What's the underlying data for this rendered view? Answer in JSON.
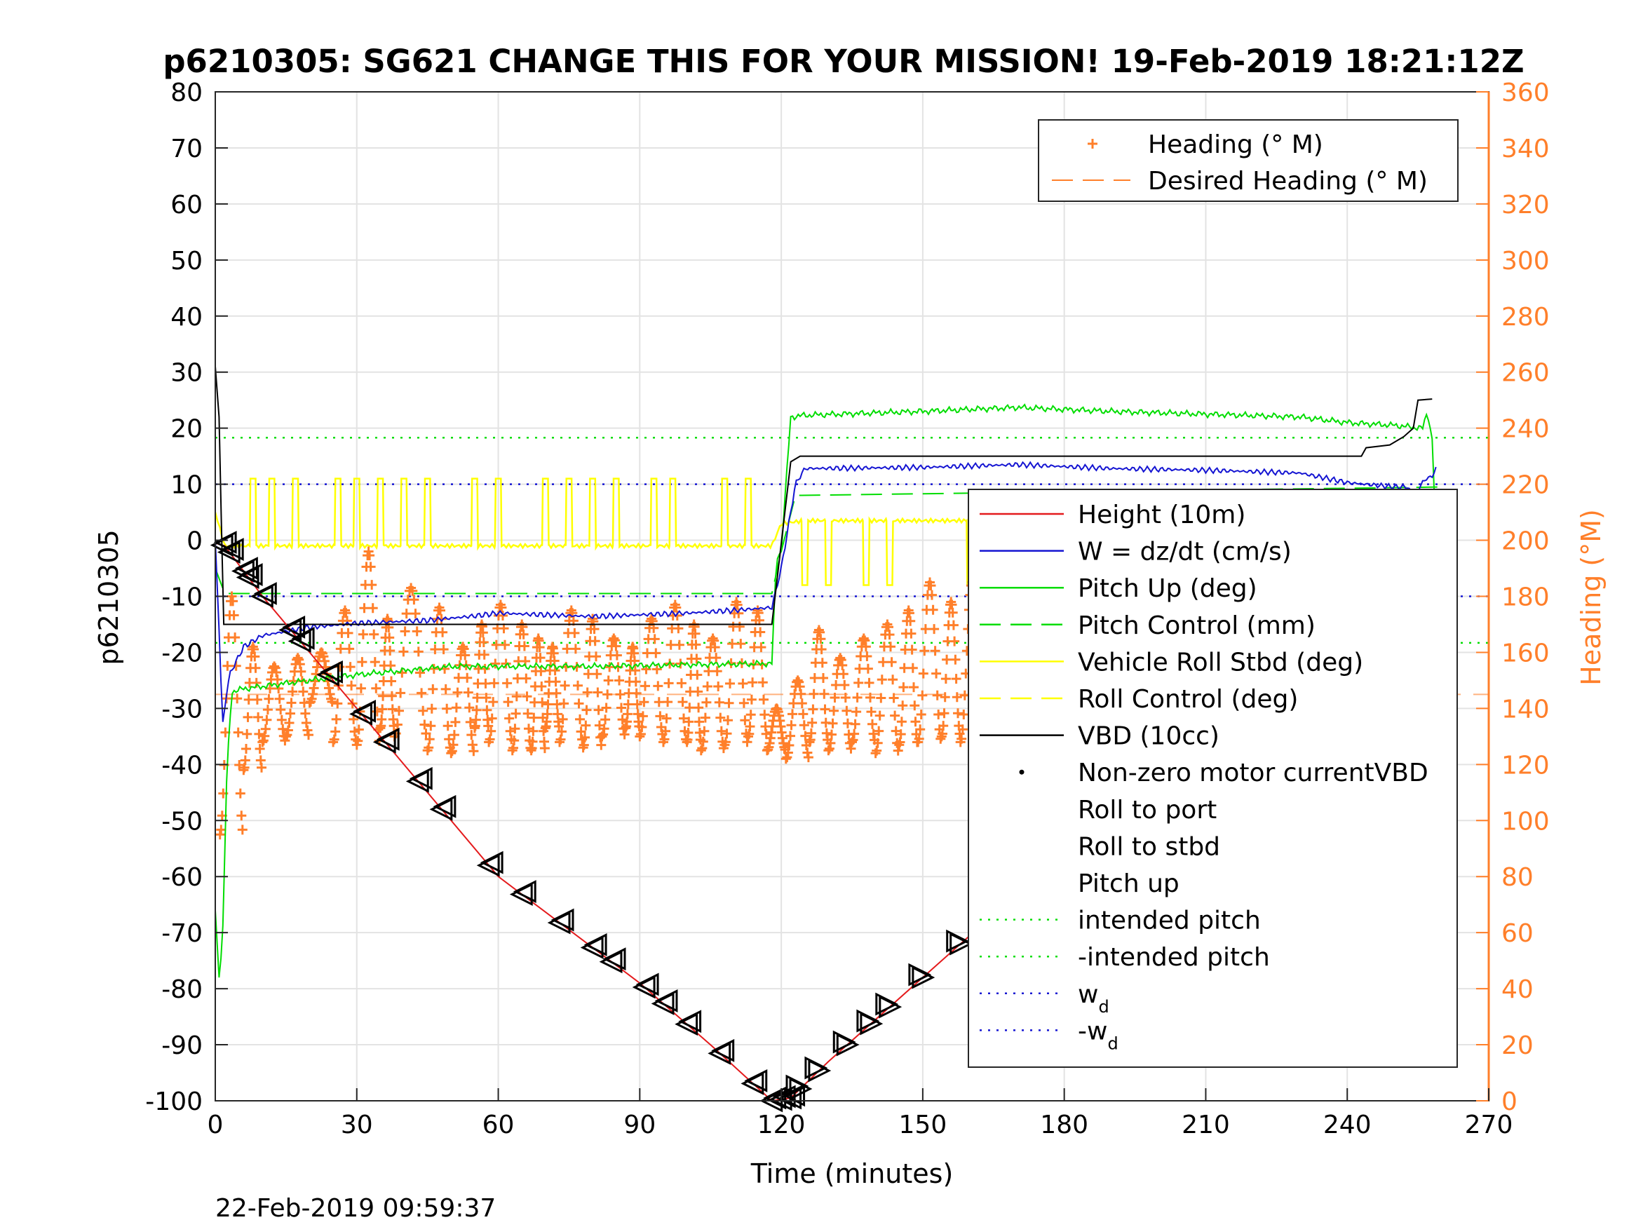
{
  "chart_data": {
    "type": "line",
    "title": "p6210305: SG621 CHANGE THIS FOR YOUR MISSION! 19-Feb-2019 18:21:12Z",
    "xlabel": "Time (minutes)",
    "ylabel": "p6210305",
    "y2label": "Heading (°M)",
    "footer": "22-Feb-2019 09:59:37",
    "xlim": [
      0,
      270
    ],
    "ylim": [
      -100,
      80
    ],
    "y2lim": [
      0,
      360
    ],
    "xticks": [
      0,
      30,
      60,
      90,
      120,
      150,
      180,
      210,
      240,
      270
    ],
    "yticks": [
      -100,
      -90,
      -80,
      -70,
      -60,
      -50,
      -40,
      -30,
      -20,
      -10,
      0,
      10,
      20,
      30,
      40,
      50,
      60,
      70,
      80
    ],
    "y2ticks": [
      0,
      20,
      40,
      60,
      80,
      100,
      120,
      140,
      160,
      180,
      200,
      220,
      240,
      260,
      280,
      300,
      320,
      340,
      360
    ],
    "grid": true,
    "colors": {
      "height": "#e41a1c",
      "w": "#1414d2",
      "pitch": "#00dd00",
      "roll_control": "#ffff00",
      "vbd": "#000000",
      "heading": "#ff7f2a",
      "right_axis": "#ff7f2a"
    },
    "legend_heading": {
      "placement": "top-right",
      "entries": [
        {
          "label": "Heading (° M)",
          "style": "plus-marker",
          "color": "#ff7f2a"
        },
        {
          "label": "Desired Heading (° M)",
          "style": "dashed",
          "color": "#ff7f2a"
        }
      ]
    },
    "legend_main": {
      "placement": "right",
      "entries": [
        {
          "label": "Height (10m)",
          "style": "solid",
          "color": "#e41a1c"
        },
        {
          "label": "W = dz/dt (cm/s)",
          "style": "solid",
          "color": "#1414d2"
        },
        {
          "label": "Pitch Up (deg)",
          "style": "solid",
          "color": "#00dd00"
        },
        {
          "label": "Pitch Control (mm)",
          "style": "dashed",
          "color": "#00dd00"
        },
        {
          "label": "Vehicle Roll Stbd (deg)",
          "style": "solid",
          "color": "#ffff00"
        },
        {
          "label": "Roll Control (deg)",
          "style": "dashed",
          "color": "#ffff00"
        },
        {
          "label": "VBD (10cc)",
          "style": "solid",
          "color": "#000000"
        },
        {
          "label": "Non-zero motor currentVBD",
          "style": "dot",
          "color": "#000000"
        },
        {
          "label": "Roll to port",
          "style": "tri-left",
          "color": "#000000"
        },
        {
          "label": "Roll to stbd",
          "style": "tri-right",
          "color": "#000000"
        },
        {
          "label": "Pitch up",
          "style": "tri-up",
          "color": "#000000"
        },
        {
          "label": "intended pitch",
          "style": "dotted",
          "color": "#00dd00"
        },
        {
          "label": "-intended pitch",
          "style": "dotted",
          "color": "#00dd00"
        },
        {
          "label": "w",
          "sub": "d",
          "style": "dotted",
          "color": "#1414d2"
        },
        {
          "label": "-w",
          "sub": "d",
          "style": "dotted",
          "color": "#1414d2"
        }
      ]
    },
    "series": [
      {
        "name": "Height (10m)",
        "color": "#e41a1c",
        "points": [
          [
            0,
            -0.5
          ],
          [
            2,
            -1
          ],
          [
            10,
            -10
          ],
          [
            30,
            -30
          ],
          [
            60,
            -60
          ],
          [
            90,
            -79
          ],
          [
            105,
            -90
          ],
          [
            118,
            -100
          ],
          [
            122,
            -99.5
          ],
          [
            130,
            -93
          ],
          [
            150,
            -78
          ],
          [
            170,
            -63
          ],
          [
            190,
            -47
          ],
          [
            210,
            -31
          ],
          [
            230,
            -17
          ],
          [
            250,
            -6
          ],
          [
            260,
            0
          ]
        ]
      },
      {
        "name": "W = dz/dt (cm/s)",
        "color": "#1414d2",
        "points": [
          [
            0,
            0
          ],
          [
            1,
            -20
          ],
          [
            1.5,
            -33
          ],
          [
            3,
            -24
          ],
          [
            6,
            -19
          ],
          [
            10,
            -17
          ],
          [
            20,
            -15.5
          ],
          [
            30,
            -14.8
          ],
          [
            45,
            -14.3
          ],
          [
            55,
            -13.5
          ],
          [
            60,
            -13
          ],
          [
            80,
            -13.6
          ],
          [
            100,
            -13
          ],
          [
            110,
            -12.5
          ],
          [
            118,
            -12
          ],
          [
            120,
            -5
          ],
          [
            123,
            10
          ],
          [
            125,
            12.8
          ],
          [
            150,
            13
          ],
          [
            170,
            13.5
          ],
          [
            190,
            12.8
          ],
          [
            210,
            12.5
          ],
          [
            230,
            12
          ],
          [
            240,
            10.3
          ],
          [
            250,
            9.5
          ],
          [
            253,
            9.5
          ],
          [
            254,
            7
          ],
          [
            256,
            10.5
          ],
          [
            258,
            11.5
          ],
          [
            259,
            13
          ]
        ]
      },
      {
        "name": "Pitch Up (deg)",
        "color": "#00dd00",
        "points": [
          [
            0,
            -66
          ],
          [
            0.8,
            -78
          ],
          [
            1.5,
            -72
          ],
          [
            2.5,
            -40
          ],
          [
            3.5,
            -27
          ],
          [
            6,
            -26.5
          ],
          [
            15,
            -25.5
          ],
          [
            30,
            -24
          ],
          [
            50,
            -22.5
          ],
          [
            80,
            -22.5
          ],
          [
            100,
            -22.2
          ],
          [
            118,
            -22
          ],
          [
            119,
            -3
          ],
          [
            120,
            -2
          ],
          [
            121,
            10
          ],
          [
            122,
            22
          ],
          [
            125,
            22.3
          ],
          [
            150,
            23
          ],
          [
            170,
            23.7
          ],
          [
            190,
            23
          ],
          [
            210,
            22.5
          ],
          [
            230,
            22
          ],
          [
            240,
            21
          ],
          [
            250,
            20.5
          ],
          [
            256,
            20
          ],
          [
            257,
            23
          ],
          [
            258,
            18
          ],
          [
            259,
            -3
          ]
        ]
      },
      {
        "name": "Pitch Control (mm)",
        "color": "#00dd00",
        "dashed": true,
        "points": [
          [
            0,
            -5
          ],
          [
            2,
            -9.5
          ],
          [
            10,
            -9.5
          ],
          [
            118,
            -9.5
          ],
          [
            120,
            -2
          ],
          [
            123,
            8
          ],
          [
            260,
            9.5
          ]
        ]
      },
      {
        "name": "Roll Control (deg)",
        "color": "#ffff00",
        "points": [
          [
            0,
            5
          ],
          [
            2,
            -1
          ],
          [
            118,
            -1
          ],
          [
            120,
            3
          ],
          [
            125,
            3.5
          ],
          [
            260,
            3.5
          ]
        ],
        "spikes": [
          [
            8,
            11
          ],
          [
            12,
            11
          ],
          [
            17,
            11
          ],
          [
            26,
            11
          ],
          [
            30,
            11
          ],
          [
            35,
            11
          ],
          [
            40,
            11
          ],
          [
            45,
            11
          ],
          [
            55,
            11
          ],
          [
            60,
            11
          ],
          [
            70,
            11
          ],
          [
            75,
            11
          ],
          [
            80,
            11
          ],
          [
            85,
            11
          ],
          [
            93,
            11
          ],
          [
            97,
            11
          ],
          [
            108,
            11
          ],
          [
            113,
            11
          ],
          [
            125,
            -8
          ],
          [
            130,
            -8
          ],
          [
            138,
            -8
          ],
          [
            143,
            -8
          ],
          [
            160,
            -8
          ],
          [
            170,
            -8
          ],
          [
            176,
            -8
          ],
          [
            184,
            -8
          ],
          [
            196,
            -8
          ],
          [
            204,
            -8
          ],
          [
            216,
            -8
          ],
          [
            226,
            -8
          ],
          [
            236,
            -8
          ],
          [
            243,
            -8
          ],
          [
            250,
            -8
          ],
          [
            255,
            -10
          ]
        ]
      },
      {
        "name": "VBD (10cc)",
        "color": "#000000",
        "points": [
          [
            0,
            31
          ],
          [
            0.8,
            22
          ],
          [
            1.3,
            3
          ],
          [
            1.8,
            -15
          ],
          [
            118,
            -15
          ],
          [
            122,
            14
          ],
          [
            124,
            15
          ],
          [
            243,
            15
          ],
          [
            244,
            16.5
          ],
          [
            249,
            17
          ],
          [
            252,
            18.5
          ],
          [
            254,
            20
          ],
          [
            255,
            25
          ],
          [
            258,
            25.2
          ]
        ]
      },
      {
        "name": "intended pitch",
        "color": "#00dd00",
        "dotted": true,
        "points": [
          [
            0,
            18.3
          ],
          [
            270,
            18.3
          ]
        ]
      },
      {
        "name": "-intended pitch",
        "color": "#00dd00",
        "dotted": true,
        "points": [
          [
            0,
            -18.3
          ],
          [
            270,
            -18.3
          ]
        ]
      },
      {
        "name": "w_d",
        "color": "#1414d2",
        "dotted": true,
        "points": [
          [
            0,
            10
          ],
          [
            270,
            10
          ]
        ]
      },
      {
        "name": "-w_d",
        "color": "#1414d2",
        "dotted": true,
        "points": [
          [
            0,
            -10
          ],
          [
            270,
            -10
          ]
        ]
      },
      {
        "name": "Heading (° M)",
        "color": "#ff7f2a",
        "axis": "right",
        "marker": "plus",
        "cycles": [
          [
            1,
            95,
            180
          ],
          [
            6,
            118,
            162
          ],
          [
            10,
            128,
            155
          ],
          [
            15,
            130,
            158
          ],
          [
            20,
            142,
            160
          ],
          [
            25,
            128,
            175
          ],
          [
            30,
            127,
            196
          ],
          [
            35,
            133,
            172
          ],
          [
            38,
            130,
            183
          ],
          [
            45,
            125,
            176
          ],
          [
            50,
            124,
            162
          ],
          [
            55,
            133,
            170
          ],
          [
            58,
            128,
            177
          ],
          [
            63,
            125,
            170
          ],
          [
            67,
            125,
            165
          ],
          [
            70,
            133,
            162
          ],
          [
            73,
            128,
            175
          ],
          [
            78,
            126,
            172
          ],
          [
            82,
            130,
            165
          ],
          [
            87,
            133,
            162
          ],
          [
            90,
            130,
            172
          ],
          [
            95,
            128,
            177
          ],
          [
            100,
            128,
            170
          ],
          [
            103,
            125,
            165
          ],
          [
            108,
            127,
            178
          ],
          [
            113,
            130,
            175
          ],
          [
            117,
            125,
            140
          ],
          [
            121,
            122,
            150
          ],
          [
            126,
            128,
            168
          ],
          [
            130,
            125,
            158
          ],
          [
            135,
            128,
            165
          ],
          [
            140,
            124,
            170
          ],
          [
            145,
            127,
            175
          ],
          [
            149,
            128,
            185
          ],
          [
            154,
            130,
            178
          ],
          [
            158,
            128,
            185
          ],
          [
            163,
            130,
            165
          ],
          [
            167,
            126,
            177
          ],
          [
            172,
            130,
            170
          ],
          [
            176,
            126,
            165
          ],
          [
            181,
            130,
            165
          ],
          [
            186,
            128,
            165
          ],
          [
            191,
            127,
            172
          ],
          [
            196,
            125,
            168
          ],
          [
            200,
            128,
            165
          ],
          [
            205,
            127,
            170
          ],
          [
            209,
            128,
            180
          ],
          [
            214,
            127,
            170
          ],
          [
            218,
            124,
            180
          ],
          [
            223,
            127,
            165
          ],
          [
            227,
            118,
            160
          ],
          [
            232,
            125,
            178
          ],
          [
            236,
            120,
            170
          ],
          [
            240,
            110,
            165
          ],
          [
            244,
            115,
            182
          ],
          [
            248,
            122,
            170
          ],
          [
            252,
            130,
            180
          ],
          [
            255,
            128,
            195
          ],
          [
            258,
            136,
            178
          ]
        ]
      },
      {
        "name": "Desired Heading (° M)",
        "color": "#ff7f2a",
        "axis": "right",
        "dashed": true,
        "points": [
          [
            0,
            145
          ],
          [
            270,
            145
          ]
        ]
      },
      {
        "name": "Roll to port",
        "marker": "tri-left",
        "color": "#000000",
        "x": [
          1.5,
          3,
          6,
          7,
          10,
          16,
          18,
          24,
          31,
          36,
          43,
          48,
          58,
          65,
          73,
          80,
          84,
          91,
          95,
          100,
          107,
          114,
          118,
          120,
          122
        ]
      },
      {
        "name": "Roll to stbd",
        "marker": "tri-right",
        "color": "#000000",
        "x": [
          124,
          128,
          134,
          139,
          143,
          150,
          158,
          164,
          169,
          174,
          179,
          183,
          191,
          197,
          204,
          207,
          210,
          214,
          218,
          220,
          227,
          234,
          238,
          242,
          246,
          249,
          253,
          256,
          258,
          260
        ]
      }
    ]
  }
}
